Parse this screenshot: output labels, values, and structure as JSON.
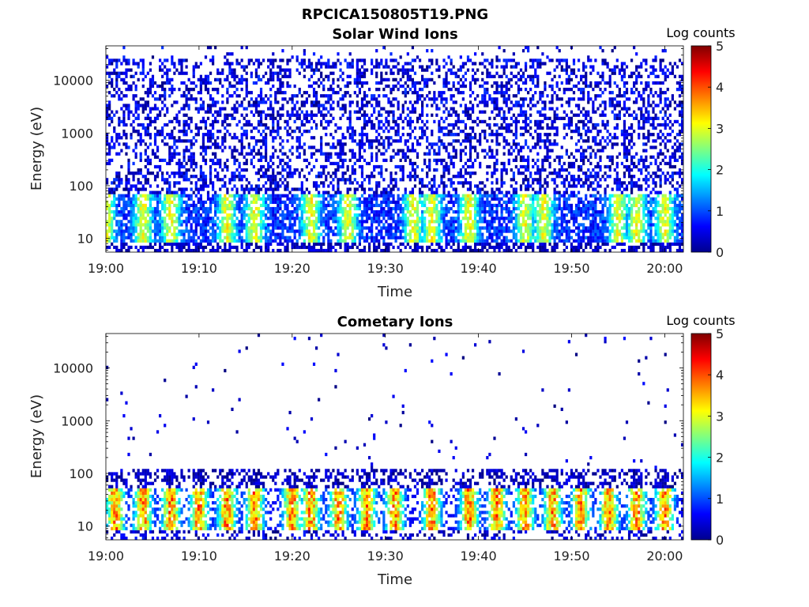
{
  "figure": {
    "title": "RPCICA150805T19.PNG"
  },
  "chart_data": [
    {
      "type": "heatmap",
      "title": "Solar Wind Ions",
      "xlabel": "Time",
      "ylabel": "Energy (eV)",
      "x_ticks": [
        "19:00",
        "19:10",
        "19:20",
        "19:30",
        "19:40",
        "19:50",
        "20:00"
      ],
      "y_ticks": [
        "10",
        "100",
        "1000",
        "10000"
      ],
      "y_scale": "log",
      "ylim": [
        5.5,
        45000
      ],
      "xlim": [
        "19:00",
        "20:02"
      ],
      "colorbar": {
        "label": "Log counts",
        "ticks": [
          "0",
          "1",
          "2",
          "3",
          "4",
          "5"
        ],
        "range": [
          0,
          5
        ],
        "colormap": "jet"
      },
      "description_of_values": {
        "high_energy_background": "sparse, mostly 0-1 log counts from ~100 eV to ~30000 eV",
        "low_energy_band": "dense 1-3 log counts between ~10 and ~60 eV",
        "peak_times": [
          "19:00",
          "19:04",
          "19:07",
          "19:13",
          "19:16",
          "19:22",
          "19:26",
          "19:33",
          "19:35",
          "19:39",
          "19:45",
          "19:47",
          "19:55",
          "19:57",
          "20:00"
        ]
      }
    },
    {
      "type": "heatmap",
      "title": "Cometary Ions",
      "xlabel": "Time",
      "ylabel": "Energy (eV)",
      "x_ticks": [
        "19:00",
        "19:10",
        "19:20",
        "19:30",
        "19:40",
        "19:50",
        "20:00"
      ],
      "y_ticks": [
        "10",
        "100",
        "1000",
        "10000"
      ],
      "y_scale": "log",
      "ylim": [
        5.5,
        45000
      ],
      "xlim": [
        "19:00",
        "20:02"
      ],
      "colorbar": {
        "label": "Log counts",
        "ticks": [
          "0",
          "1",
          "2",
          "3",
          "4",
          "5"
        ],
        "range": [
          0,
          5
        ],
        "colormap": "jet"
      },
      "description_of_values": {
        "high_energy_background": "very sparse 0-1 log counts above 100 eV",
        "low_energy_band": "1-4.5 log counts between ~10 and ~50 eV, peaks ~4.5 near 19:35-19:39",
        "peak_times": [
          "19:01",
          "19:04",
          "19:07",
          "19:10",
          "19:13",
          "19:16",
          "19:20",
          "19:22",
          "19:25",
          "19:28",
          "19:31",
          "19:35",
          "19:39",
          "19:42",
          "19:45",
          "19:48",
          "19:51",
          "19:54",
          "19:57",
          "20:00"
        ]
      }
    }
  ]
}
